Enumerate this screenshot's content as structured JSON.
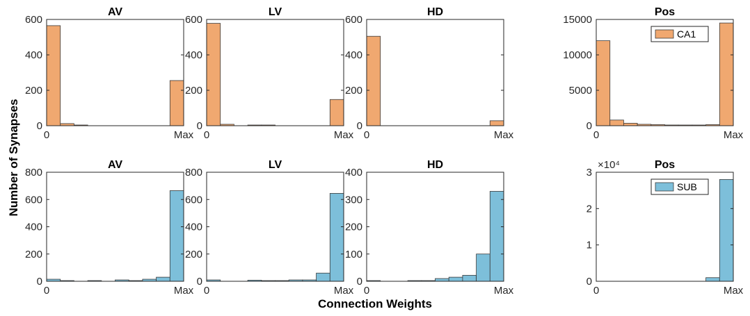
{
  "figure": {
    "ylabel": "Number of Synapses",
    "xlabel": "Connection Weights"
  },
  "chart_data": [
    {
      "type": "bar",
      "title": "AV",
      "series_name": "",
      "color": "#f0a870",
      "bins": [
        0,
        1,
        2,
        3,
        4,
        5,
        6,
        7,
        8,
        9
      ],
      "values": [
        565,
        12,
        3,
        0,
        0,
        0,
        0,
        0,
        0,
        255
      ],
      "ylim": [
        0,
        600
      ],
      "yticks": [
        "0",
        "200",
        "400",
        "600"
      ],
      "yticks_values": [
        0,
        200,
        400,
        600
      ],
      "xticks": [
        "0",
        "Max"
      ],
      "legend": false,
      "multiplier": ""
    },
    {
      "type": "bar",
      "title": "LV",
      "series_name": "",
      "color": "#f0a870",
      "bins": [
        0,
        1,
        2,
        3,
        4,
        5,
        6,
        7,
        8,
        9
      ],
      "values": [
        578,
        8,
        0,
        3,
        3,
        0,
        0,
        0,
        0,
        148
      ],
      "ylim": [
        0,
        600
      ],
      "yticks": [
        "0",
        "200",
        "400",
        "600"
      ],
      "yticks_values": [
        0,
        200,
        400,
        600
      ],
      "xticks": [
        "0",
        "Max"
      ],
      "legend": false,
      "multiplier": ""
    },
    {
      "type": "bar",
      "title": "HD",
      "series_name": "",
      "color": "#f0a870",
      "bins": [
        0,
        1,
        2,
        3,
        4,
        5,
        6,
        7,
        8,
        9
      ],
      "values": [
        505,
        0,
        0,
        0,
        0,
        0,
        0,
        0,
        0,
        28
      ],
      "ylim": [
        0,
        600
      ],
      "yticks": [
        "0",
        "200",
        "400",
        "600"
      ],
      "yticks_values": [
        0,
        200,
        400,
        600
      ],
      "xticks": [
        "0",
        "Max"
      ],
      "legend": false,
      "multiplier": ""
    },
    {
      "type": "bar",
      "title": "Pos",
      "series_name": "CA1",
      "color": "#f0a870",
      "bins": [
        0,
        1,
        2,
        3,
        4,
        5,
        6,
        7,
        8,
        9
      ],
      "values": [
        12000,
        800,
        350,
        200,
        150,
        100,
        80,
        60,
        150,
        14500
      ],
      "ylim": [
        0,
        15000
      ],
      "yticks": [
        "0",
        "5000",
        "10000",
        "15000"
      ],
      "yticks_values": [
        0,
        5000,
        10000,
        15000
      ],
      "xticks": [
        "0",
        "Max"
      ],
      "legend": true,
      "multiplier": ""
    },
    {
      "type": "bar",
      "title": "AV",
      "series_name": "",
      "color": "#7dbfda",
      "bins": [
        0,
        1,
        2,
        3,
        4,
        5,
        6,
        7,
        8,
        9
      ],
      "values": [
        15,
        5,
        0,
        3,
        0,
        10,
        5,
        15,
        30,
        665
      ],
      "ylim": [
        0,
        800
      ],
      "yticks": [
        "0",
        "200",
        "400",
        "600",
        "800"
      ],
      "yticks_values": [
        0,
        200,
        400,
        600,
        800
      ],
      "xticks": [
        "0",
        "Max"
      ],
      "legend": false,
      "multiplier": ""
    },
    {
      "type": "bar",
      "title": "LV",
      "series_name": "",
      "color": "#7dbfda",
      "bins": [
        0,
        1,
        2,
        3,
        4,
        5,
        6,
        7,
        8,
        9
      ],
      "values": [
        10,
        0,
        0,
        8,
        5,
        5,
        10,
        10,
        60,
        645
      ],
      "ylim": [
        0,
        800
      ],
      "yticks": [
        "0",
        "200",
        "400",
        "600",
        "800"
      ],
      "yticks_values": [
        0,
        200,
        400,
        600,
        800
      ],
      "xticks": [
        "0",
        "Max"
      ],
      "legend": false,
      "multiplier": ""
    },
    {
      "type": "bar",
      "title": "HD",
      "series_name": "",
      "color": "#7dbfda",
      "bins": [
        0,
        1,
        2,
        3,
        4,
        5,
        6,
        7,
        8,
        9
      ],
      "values": [
        2,
        0,
        0,
        1,
        2,
        10,
        15,
        22,
        100,
        330
      ],
      "ylim": [
        0,
        400
      ],
      "yticks": [
        "0",
        "100",
        "200",
        "300",
        "400"
      ],
      "yticks_values": [
        0,
        100,
        200,
        300,
        400
      ],
      "xticks": [
        "0",
        "Max"
      ],
      "legend": false,
      "multiplier": ""
    },
    {
      "type": "bar",
      "title": "Pos",
      "series_name": "SUB",
      "color": "#7dbfda",
      "bins": [
        0,
        1,
        2,
        3,
        4,
        5,
        6,
        7,
        8,
        9
      ],
      "values": [
        0,
        0,
        0,
        0,
        0,
        0,
        0,
        0,
        1000,
        28000
      ],
      "ylim": [
        0,
        30000
      ],
      "yticks": [
        "0",
        "1",
        "2",
        "3"
      ],
      "yticks_values": [
        0,
        10000,
        20000,
        30000
      ],
      "xticks": [
        "0",
        "Max"
      ],
      "legend": true,
      "multiplier": "×10⁴"
    }
  ]
}
